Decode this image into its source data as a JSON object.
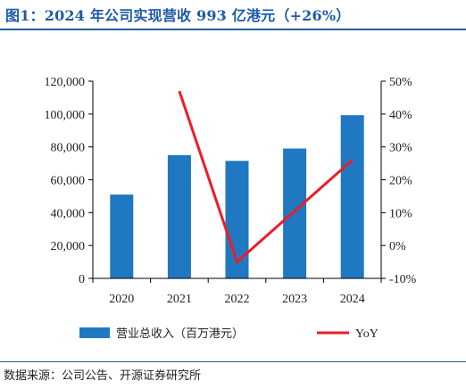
{
  "figure": {
    "title": "图1：2024 年公司实现营收 993 亿港元（+26%）",
    "source": "数据来源：公司公告、开源证券研究所"
  },
  "colors": {
    "title": "#1f5aa6",
    "bar": "#1f78c1",
    "line": "#ee1c25",
    "axis": "#000000"
  },
  "chart_data": {
    "type": "bar",
    "categories": [
      "2020",
      "2021",
      "2022",
      "2023",
      "2024"
    ],
    "series": [
      {
        "name": "营业总收入（百万港元）",
        "type": "bar",
        "axis": "left",
        "values": [
          51000,
          75000,
          71500,
          79000,
          99300
        ]
      },
      {
        "name": "YoY",
        "type": "line",
        "axis": "right",
        "values": [
          null,
          47,
          -5,
          10.5,
          26
        ]
      }
    ],
    "y_left": {
      "ylim": [
        0,
        120000
      ],
      "ticks": [
        0,
        20000,
        40000,
        60000,
        80000,
        100000,
        120000
      ],
      "tick_labels": [
        "0",
        "20,000",
        "40,000",
        "60,000",
        "80,000",
        "100,000",
        "120,000"
      ]
    },
    "y_right": {
      "ylim": [
        -10,
        50
      ],
      "ticks": [
        -10,
        0,
        10,
        20,
        30,
        40,
        50
      ],
      "tick_labels": [
        "-10%",
        "0%",
        "10%",
        "20%",
        "30%",
        "40%",
        "50%"
      ]
    },
    "grid": false,
    "legend_position": "bottom"
  }
}
